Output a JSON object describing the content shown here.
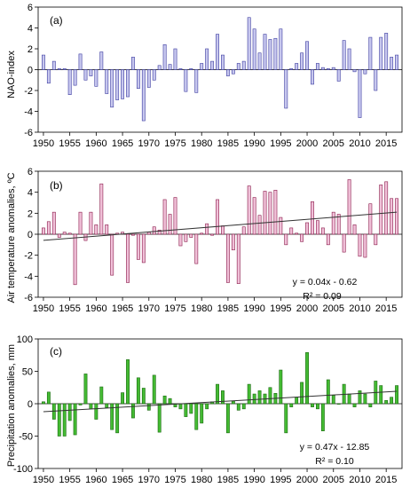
{
  "chart_data": [
    {
      "type": "bar",
      "panel_label": "(a)",
      "ylabel": "NAO-index",
      "xlim": [
        1949,
        2018
      ],
      "ylim": [
        -6,
        6
      ],
      "y_ticks": [
        -6,
        -4,
        -2,
        0,
        2,
        4,
        6
      ],
      "x_ticks": [
        1950,
        1955,
        1960,
        1965,
        1970,
        1975,
        1980,
        1985,
        1990,
        1995,
        2000,
        2005,
        2010,
        2015
      ],
      "bar_fill": "#c7c7ee",
      "bar_stroke": "#3c3ca0",
      "grid": false,
      "x": [
        1950,
        1951,
        1952,
        1953,
        1954,
        1955,
        1956,
        1957,
        1958,
        1959,
        1960,
        1961,
        1962,
        1963,
        1964,
        1965,
        1966,
        1967,
        1968,
        1969,
        1970,
        1971,
        1972,
        1973,
        1974,
        1975,
        1976,
        1977,
        1978,
        1979,
        1980,
        1981,
        1982,
        1983,
        1984,
        1985,
        1986,
        1987,
        1988,
        1989,
        1990,
        1991,
        1992,
        1993,
        1994,
        1995,
        1996,
        1997,
        1998,
        1999,
        2000,
        2001,
        2002,
        2003,
        2004,
        2005,
        2006,
        2007,
        2008,
        2009,
        2010,
        2011,
        2012,
        2013,
        2014,
        2015,
        2016,
        2017
      ],
      "values": [
        1.4,
        -1.3,
        0.8,
        0.1,
        0.1,
        -2.4,
        -1.5,
        1.5,
        -1.0,
        -0.6,
        -1.6,
        1.7,
        -2.3,
        -3.6,
        -2.9,
        -2.8,
        -2.6,
        1.2,
        -1.8,
        -4.9,
        -1.7,
        -1.0,
        0.4,
        2.4,
        0.5,
        2.0,
        0.1,
        -2.1,
        0.1,
        -2.2,
        0.6,
        2.0,
        0.8,
        3.4,
        1.4,
        -0.6,
        -0.4,
        0.6,
        0.8,
        5.0,
        3.9,
        1.6,
        3.4,
        2.9,
        3.0,
        3.9,
        -3.7,
        0.1,
        0.6,
        1.6,
        2.7,
        -1.4,
        0.6,
        0.2,
        0.1,
        0.2,
        -1.1,
        2.8,
        2.0,
        -0.2,
        -4.6,
        -0.4,
        3.1,
        -2.0,
        3.1,
        3.5,
        1.2,
        1.4
      ],
      "trend": null
    },
    {
      "type": "bar",
      "panel_label": "(b)",
      "ylabel": "Air temperature anomalies, ºC",
      "xlim": [
        1949,
        2018
      ],
      "ylim": [
        -6,
        6
      ],
      "y_ticks": [
        -6,
        -4,
        -2,
        0,
        2,
        4,
        6
      ],
      "x_ticks": [
        1950,
        1955,
        1960,
        1965,
        1970,
        1975,
        1980,
        1985,
        1990,
        1995,
        2000,
        2005,
        2010,
        2015
      ],
      "bar_fill": "#f0c0d8",
      "bar_stroke": "#8a1a4a",
      "grid": false,
      "x": [
        1950,
        1951,
        1952,
        1953,
        1954,
        1955,
        1956,
        1957,
        1958,
        1959,
        1960,
        1961,
        1962,
        1963,
        1964,
        1965,
        1966,
        1967,
        1968,
        1969,
        1970,
        1971,
        1972,
        1973,
        1974,
        1975,
        1976,
        1977,
        1978,
        1979,
        1980,
        1981,
        1982,
        1983,
        1984,
        1985,
        1986,
        1987,
        1988,
        1989,
        1990,
        1991,
        1992,
        1993,
        1994,
        1995,
        1996,
        1997,
        1998,
        1999,
        2000,
        2001,
        2002,
        2003,
        2004,
        2005,
        2006,
        2007,
        2008,
        2009,
        2010,
        2011,
        2012,
        2013,
        2014,
        2015,
        2016,
        2017
      ],
      "values": [
        0.6,
        1.2,
        2.1,
        -0.3,
        0.2,
        0.1,
        -4.8,
        2.1,
        -0.6,
        2.1,
        0.9,
        4.8,
        0.9,
        -3.9,
        0.1,
        0.2,
        -4.6,
        -0.1,
        -2.4,
        -2.7,
        0.2,
        0.7,
        0.4,
        3.3,
        1.9,
        3.5,
        -1.1,
        -0.7,
        -0.3,
        -2.8,
        0.1,
        1.0,
        -0.1,
        3.3,
        0.8,
        -4.6,
        -1.5,
        -4.7,
        0.7,
        4.6,
        3.5,
        1.8,
        4.1,
        4.0,
        4.2,
        1.6,
        -1.0,
        0.6,
        0.1,
        -0.7,
        1.1,
        3.1,
        1.3,
        0.6,
        -1.0,
        2.1,
        1.9,
        -1.7,
        5.2,
        0.9,
        -2.1,
        -2.2,
        2.9,
        -1.0,
        4.7,
        5.0,
        3.4,
        3.4
      ],
      "trend": {
        "slope": 0.04,
        "intercept": -0.62,
        "x_start": 1950,
        "x_end": 2017,
        "equation": "y = 0.04x - 0.62",
        "r2": "R² = 0.09"
      }
    },
    {
      "type": "bar",
      "panel_label": "(c)",
      "ylabel": "Precipitation anomalies, mm",
      "xlim": [
        1949,
        2018
      ],
      "ylim": [
        -100,
        100
      ],
      "y_ticks": [
        -100,
        -50,
        0,
        50,
        100
      ],
      "x_ticks": [
        1950,
        1955,
        1960,
        1965,
        1970,
        1975,
        1980,
        1985,
        1990,
        1995,
        2000,
        2005,
        2010,
        2015
      ],
      "bar_fill": "#44bb33",
      "bar_stroke": "#1a6a10",
      "grid": false,
      "x": [
        1950,
        1951,
        1952,
        1953,
        1954,
        1955,
        1956,
        1957,
        1958,
        1959,
        1960,
        1961,
        1962,
        1963,
        1964,
        1965,
        1966,
        1967,
        1968,
        1969,
        1970,
        1971,
        1972,
        1973,
        1974,
        1975,
        1976,
        1977,
        1978,
        1979,
        1980,
        1981,
        1982,
        1983,
        1984,
        1985,
        1986,
        1987,
        1988,
        1989,
        1990,
        1991,
        1992,
        1993,
        1994,
        1995,
        1996,
        1997,
        1998,
        1999,
        2000,
        2001,
        2002,
        2003,
        2004,
        2005,
        2006,
        2007,
        2008,
        2009,
        2010,
        2011,
        2012,
        2013,
        2014,
        2015,
        2016,
        2017
      ],
      "values": [
        3,
        18,
        -24,
        -50,
        -50,
        -26,
        -48,
        -2,
        46,
        -8,
        -24,
        26,
        -6,
        -40,
        -45,
        17,
        68,
        -22,
        40,
        24,
        -10,
        44,
        -44,
        12,
        8,
        -5,
        -8,
        -20,
        -15,
        -40,
        -30,
        -8,
        3,
        30,
        20,
        -45,
        4,
        -10,
        -8,
        30,
        15,
        20,
        15,
        25,
        16,
        52,
        -45,
        -5,
        10,
        33,
        79,
        -5,
        -8,
        -42,
        37,
        13,
        0,
        30,
        15,
        -5,
        20,
        15,
        -5,
        35,
        28,
        5,
        10,
        28
      ],
      "trend": {
        "slope": 0.47,
        "intercept": -12.85,
        "x_start": 1950,
        "x_end": 2017,
        "equation": "y = 0.47x - 12.85",
        "r2": "R² = 0.10"
      }
    }
  ]
}
